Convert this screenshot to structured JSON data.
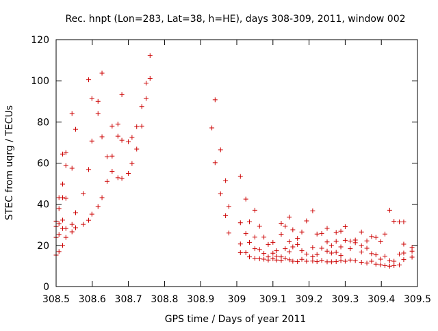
{
  "chart_data": {
    "type": "scatter",
    "title": "Rec. hnpt (Lon=283, Lat=38, h=HE), days 308-309, 2011, window 002",
    "xlabel": "GPS time / Days of year 2011",
    "ylabel": "STEC from uqrg / TECUs",
    "xlim": [
      308.5,
      309.5
    ],
    "ylim": [
      0,
      120
    ],
    "xticks": [
      308.5,
      308.6,
      308.7,
      308.8,
      308.9,
      309,
      309.1,
      309.2,
      309.3,
      309.4,
      309.5
    ],
    "xtick_labels": [
      "308.5",
      "308.6",
      "308.7",
      "308.8",
      "308.9",
      "309",
      "309.1",
      "309.2",
      "309.3",
      "309.4",
      "309.5"
    ],
    "yticks": [
      0,
      20,
      40,
      60,
      80,
      100,
      120
    ],
    "ytick_labels": [
      "0",
      "20",
      "40",
      "60",
      "80",
      "100",
      "120"
    ],
    "grid": false,
    "legend": "none",
    "marker": "plus",
    "color": "#cc0000",
    "series": [
      {
        "points": [
          [
            308.5,
            15.3
          ],
          [
            308.5,
            23.9
          ],
          [
            308.5,
            29.2
          ],
          [
            308.5,
            31.8
          ],
          [
            308.508,
            17.0
          ],
          [
            308.508,
            25.3
          ],
          [
            308.508,
            30.6
          ],
          [
            308.508,
            37.9
          ],
          [
            308.508,
            43.2
          ],
          [
            308.518,
            20.0
          ],
          [
            308.518,
            28.2
          ],
          [
            308.518,
            32.3
          ],
          [
            308.518,
            43.2
          ],
          [
            308.518,
            49.8
          ],
          [
            308.518,
            64.4
          ],
          [
            308.527,
            23.9
          ],
          [
            308.527,
            28.2
          ],
          [
            308.527,
            42.9
          ],
          [
            308.527,
            58.8
          ],
          [
            308.527,
            65.1
          ],
          [
            308.544,
            26.6
          ],
          [
            308.544,
            30.2
          ],
          [
            308.544,
            57.5
          ],
          [
            308.544,
            84.1
          ],
          [
            308.554,
            28.6
          ],
          [
            308.554,
            35.9
          ],
          [
            308.554,
            76.4
          ],
          [
            308.575,
            30.2
          ],
          [
            308.575,
            45.2
          ],
          [
            308.59,
            32.2
          ],
          [
            308.59,
            56.9
          ],
          [
            308.59,
            100.5
          ],
          [
            308.599,
            35.2
          ],
          [
            308.599,
            70.7
          ],
          [
            308.599,
            91.4
          ],
          [
            308.616,
            38.9
          ],
          [
            308.616,
            84.1
          ],
          [
            308.616,
            90.0
          ],
          [
            308.627,
            43.2
          ],
          [
            308.627,
            72.8
          ],
          [
            308.627,
            103.7
          ],
          [
            308.641,
            51.1
          ],
          [
            308.641,
            63.1
          ],
          [
            308.655,
            56.0
          ],
          [
            308.655,
            63.4
          ],
          [
            308.655,
            78.0
          ],
          [
            308.671,
            52.9
          ],
          [
            308.671,
            73.1
          ],
          [
            308.671,
            79.0
          ],
          [
            308.682,
            52.6
          ],
          [
            308.682,
            71.1
          ],
          [
            308.682,
            93.3
          ],
          [
            308.7,
            55.0
          ],
          [
            308.7,
            70.4
          ],
          [
            308.71,
            59.8
          ],
          [
            308.71,
            72.5
          ],
          [
            308.723,
            66.8
          ],
          [
            308.723,
            77.7
          ],
          [
            308.737,
            78.0
          ],
          [
            308.737,
            87.5
          ],
          [
            308.749,
            91.4
          ],
          [
            308.749,
            98.9
          ],
          [
            308.76,
            101.2
          ],
          [
            308.76,
            112.2
          ],
          [
            308.931,
            77.1
          ],
          [
            308.94,
            90.8
          ],
          [
            308.94,
            60.2
          ],
          [
            308.955,
            66.5
          ],
          [
            308.955,
            45.1
          ],
          [
            308.969,
            51.5
          ],
          [
            308.969,
            34.4
          ],
          [
            308.978,
            38.9
          ],
          [
            308.978,
            26.0
          ],
          [
            309.01,
            53.5
          ],
          [
            309.01,
            31.0
          ],
          [
            309.01,
            20.7
          ],
          [
            309.01,
            16.5
          ],
          [
            309.025,
            42.5
          ],
          [
            309.025,
            25.7
          ],
          [
            309.025,
            16.5
          ],
          [
            309.035,
            31.5
          ],
          [
            309.035,
            21.5
          ],
          [
            309.035,
            14.4
          ],
          [
            309.05,
            37.1
          ],
          [
            309.05,
            24.0
          ],
          [
            309.05,
            18.4
          ],
          [
            309.05,
            13.8
          ],
          [
            309.063,
            29.3
          ],
          [
            309.063,
            18.0
          ],
          [
            309.063,
            13.5
          ],
          [
            309.075,
            24.0
          ],
          [
            309.075,
            16.1
          ],
          [
            309.075,
            13.3
          ],
          [
            309.087,
            20.5
          ],
          [
            309.087,
            14.4
          ],
          [
            309.087,
            12.9
          ],
          [
            309.1,
            21.5
          ],
          [
            309.1,
            16.2
          ],
          [
            309.1,
            13.5
          ],
          [
            309.11,
            17.4
          ],
          [
            309.11,
            14.8
          ],
          [
            309.11,
            12.9
          ],
          [
            309.123,
            30.7
          ],
          [
            309.123,
            25.4
          ],
          [
            309.123,
            14.4
          ],
          [
            309.123,
            12.7
          ],
          [
            309.134,
            29.3
          ],
          [
            309.134,
            18.4
          ],
          [
            309.134,
            13.8
          ],
          [
            309.145,
            33.8
          ],
          [
            309.145,
            21.8
          ],
          [
            309.145,
            16.9
          ],
          [
            309.145,
            13.0
          ],
          [
            309.155,
            27.6
          ],
          [
            309.155,
            19.3
          ],
          [
            309.155,
            12.3
          ],
          [
            309.168,
            23.4
          ],
          [
            309.168,
            20.5
          ],
          [
            309.168,
            12.1
          ],
          [
            309.18,
            26.5
          ],
          [
            309.18,
            17.4
          ],
          [
            309.18,
            13.2
          ],
          [
            309.193,
            31.9
          ],
          [
            309.193,
            15.8
          ],
          [
            309.193,
            12.3
          ],
          [
            309.21,
            36.8
          ],
          [
            309.21,
            19.0
          ],
          [
            309.21,
            14.5
          ],
          [
            309.21,
            12.4
          ],
          [
            309.222,
            25.5
          ],
          [
            309.222,
            15.6
          ],
          [
            309.222,
            12.1
          ],
          [
            309.235,
            25.8
          ],
          [
            309.235,
            18.6
          ],
          [
            309.235,
            12.7
          ],
          [
            309.25,
            28.3
          ],
          [
            309.25,
            21.7
          ],
          [
            309.25,
            17.2
          ],
          [
            309.25,
            12.0
          ],
          [
            309.262,
            19.9
          ],
          [
            309.262,
            16.3
          ],
          [
            309.262,
            12.0
          ],
          [
            309.275,
            26.3
          ],
          [
            309.275,
            22.0
          ],
          [
            309.275,
            16.6
          ],
          [
            309.275,
            12.1
          ],
          [
            309.288,
            26.9
          ],
          [
            309.288,
            19.3
          ],
          [
            309.288,
            15.1
          ],
          [
            309.288,
            12.6
          ],
          [
            309.3,
            29.1
          ],
          [
            309.3,
            22.5
          ],
          [
            309.3,
            12.3
          ],
          [
            309.314,
            22.1
          ],
          [
            309.314,
            18.4
          ],
          [
            309.314,
            12.9
          ],
          [
            309.328,
            22.6
          ],
          [
            309.328,
            21.3
          ],
          [
            309.328,
            12.6
          ],
          [
            309.345,
            26.5
          ],
          [
            309.345,
            19.8
          ],
          [
            309.345,
            16.8
          ],
          [
            309.345,
            11.8
          ],
          [
            309.36,
            22.2
          ],
          [
            309.36,
            18.6
          ],
          [
            309.36,
            11.4
          ],
          [
            309.373,
            24.3
          ],
          [
            309.373,
            16.0
          ],
          [
            309.373,
            12.3
          ],
          [
            309.385,
            23.9
          ],
          [
            309.385,
            15.4
          ],
          [
            309.385,
            10.9
          ],
          [
            309.398,
            21.8
          ],
          [
            309.398,
            13.3
          ],
          [
            309.398,
            10.6
          ],
          [
            309.41,
            25.5
          ],
          [
            309.41,
            14.8
          ],
          [
            309.41,
            10.2
          ],
          [
            309.423,
            37.1
          ],
          [
            309.423,
            12.6
          ],
          [
            309.423,
            9.9
          ],
          [
            309.435,
            31.7
          ],
          [
            309.435,
            12.3
          ],
          [
            309.435,
            10.2
          ],
          [
            309.45,
            31.4
          ],
          [
            309.45,
            15.8
          ],
          [
            309.45,
            10.5
          ],
          [
            309.462,
            31.4
          ],
          [
            309.462,
            20.6
          ],
          [
            309.462,
            16.3
          ],
          [
            309.462,
            13.1
          ],
          [
            309.485,
            19.0
          ],
          [
            309.485,
            17.2
          ],
          [
            309.485,
            14.3
          ]
        ]
      }
    ]
  }
}
